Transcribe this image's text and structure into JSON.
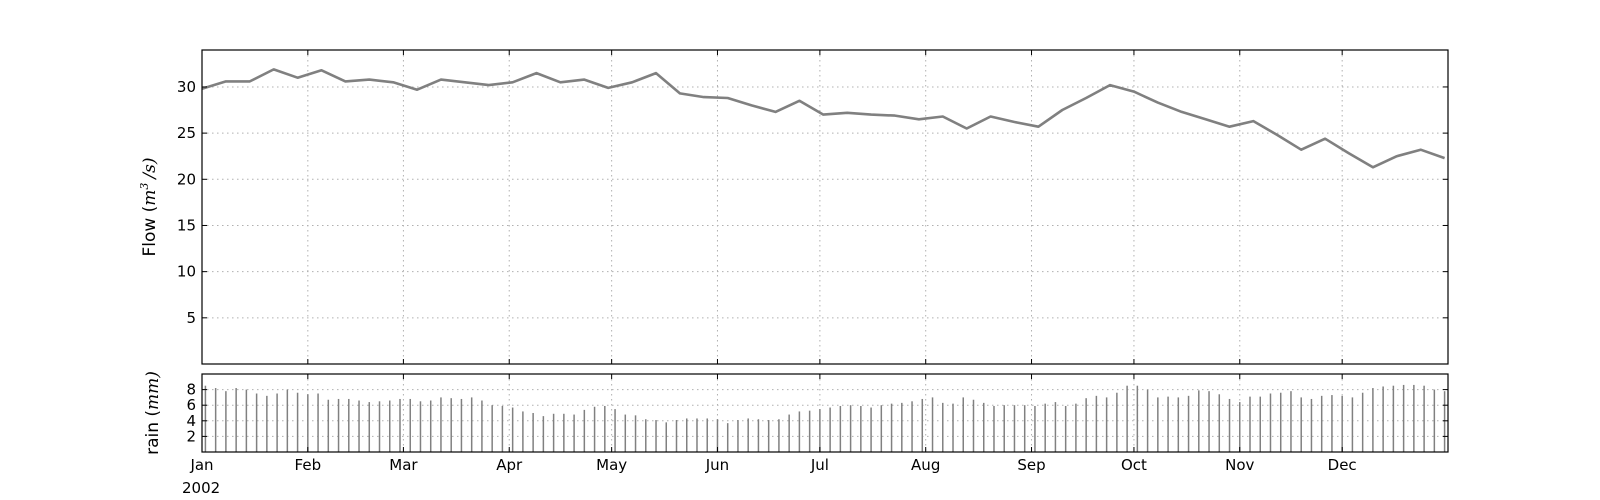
{
  "chart_data": [
    {
      "type": "line",
      "ylabel_prefix": "Flow (",
      "ylabel_unit": "m",
      "ylabel_exp": "3",
      "ylabel_suffix": "/s)",
      "ylim": [
        0,
        34
      ],
      "yticks": [
        5,
        10,
        15,
        20,
        25,
        30
      ],
      "grid": true,
      "x_start": "2002-01-01",
      "x_end": "2002-12-31",
      "series": [
        {
          "color": "#808080",
          "x": [
            "2002-01-01",
            "2002-01-08",
            "2002-01-15",
            "2002-01-22",
            "2002-01-29",
            "2002-02-05",
            "2002-02-12",
            "2002-02-19",
            "2002-02-26",
            "2002-03-05",
            "2002-03-12",
            "2002-03-19",
            "2002-03-26",
            "2002-04-02",
            "2002-04-09",
            "2002-04-16",
            "2002-04-23",
            "2002-04-30",
            "2002-05-07",
            "2002-05-14",
            "2002-05-21",
            "2002-05-28",
            "2002-06-04",
            "2002-06-11",
            "2002-06-18",
            "2002-06-25",
            "2002-07-02",
            "2002-07-09",
            "2002-07-16",
            "2002-07-23",
            "2002-07-30",
            "2002-08-06",
            "2002-08-13",
            "2002-08-20",
            "2002-08-27",
            "2002-09-03",
            "2002-09-10",
            "2002-09-17",
            "2002-09-24",
            "2002-10-01",
            "2002-10-08",
            "2002-10-15",
            "2002-10-22",
            "2002-10-29",
            "2002-11-05",
            "2002-11-12",
            "2002-11-19",
            "2002-11-26",
            "2002-12-03",
            "2002-12-10",
            "2002-12-17",
            "2002-12-24",
            "2002-12-31"
          ],
          "y": [
            29.8,
            30.6,
            30.6,
            31.9,
            31.0,
            31.8,
            30.6,
            30.8,
            30.5,
            29.7,
            30.8,
            30.5,
            30.2,
            30.5,
            31.5,
            30.5,
            30.8,
            29.9,
            30.5,
            31.5,
            29.3,
            28.9,
            28.8,
            28.0,
            27.3,
            28.5,
            27.0,
            27.2,
            27.0,
            26.9,
            26.5,
            26.8,
            25.5,
            26.8,
            26.2,
            25.7,
            27.5,
            28.8,
            30.2,
            29.5,
            28.3,
            27.3,
            26.5,
            25.7,
            26.3,
            24.8,
            23.2,
            24.4,
            22.8,
            21.3,
            22.5,
            23.2,
            22.3
          ]
        }
      ]
    },
    {
      "type": "bar",
      "ylabel_prefix": "rain (",
      "ylabel_unit": "mm",
      "ylabel_suffix": ")",
      "ylim": [
        0,
        10
      ],
      "yticks": [
        2,
        4,
        6,
        8
      ],
      "color": "#808080",
      "x_start": "2002-01-01",
      "interval_days": 3,
      "values": [
        8.5,
        8.2,
        7.8,
        8.2,
        8.0,
        7.5,
        7.2,
        7.5,
        8.0,
        7.6,
        7.4,
        7.5,
        6.7,
        6.8,
        6.8,
        6.6,
        6.4,
        6.5,
        6.6,
        6.8,
        6.8,
        6.5,
        6.6,
        7.0,
        6.9,
        6.8,
        7.0,
        6.6,
        6.0,
        5.9,
        5.7,
        5.2,
        5.0,
        4.6,
        4.9,
        4.9,
        4.8,
        5.4,
        5.8,
        5.9,
        5.5,
        4.8,
        4.7,
        4.2,
        4.1,
        3.8,
        4.1,
        4.3,
        4.3,
        4.3,
        4.2,
        3.7,
        4.1,
        4.3,
        4.2,
        4.1,
        4.2,
        4.8,
        5.2,
        5.3,
        5.5,
        5.7,
        5.9,
        6.0,
        5.9,
        5.7,
        6.0,
        6.2,
        6.3,
        6.5,
        6.8,
        7.0,
        6.3,
        6.2,
        7.0,
        6.7,
        6.3,
        5.9,
        6.0,
        6.0,
        6.0,
        5.9,
        6.2,
        6.4,
        5.9,
        6.2,
        6.9,
        7.2,
        7.0,
        7.6,
        8.5,
        8.5,
        8.0,
        7.0,
        7.1,
        7.0,
        7.2,
        7.9,
        7.8,
        7.4,
        6.8,
        6.4,
        7.1,
        7.1,
        7.5,
        7.6,
        7.8,
        7.0,
        6.8,
        7.2,
        7.3,
        7.2,
        7.0,
        7.6,
        8.2,
        8.4,
        8.5,
        8.6,
        8.6,
        8.5,
        8.0,
        7.8,
        7.9,
        8.4,
        8.3,
        7.9,
        7.2,
        7.3,
        7.0,
        7.1,
        7.2,
        7.2,
        7.8,
        8.2,
        8.2,
        7.8,
        7.4,
        6.8,
        6.7,
        6.6,
        6.0,
        5.8,
        5.8,
        5.6,
        5.9,
        6.4,
        6.6,
        6.6,
        6.5,
        6.5,
        6.5,
        6.6,
        6.7,
        7.0,
        7.6,
        8.0,
        7.4,
        8.2,
        8.3,
        8.5,
        8.7,
        8.0,
        8.0,
        8.3,
        8.1,
        8.6,
        8.9,
        9.4
      ]
    }
  ],
  "x_axis": {
    "tick_labels": [
      "Jan",
      "Feb",
      "Mar",
      "Apr",
      "May",
      "Jun",
      "Jul",
      "Aug",
      "Sep",
      "Oct",
      "Nov",
      "Dec"
    ],
    "tick_dates": [
      "2002-01-01",
      "2002-02-01",
      "2002-03-01",
      "2002-04-01",
      "2002-05-01",
      "2002-06-01",
      "2002-07-01",
      "2002-08-01",
      "2002-09-01",
      "2002-10-01",
      "2002-11-01",
      "2002-12-01"
    ],
    "year_label": "2002"
  }
}
